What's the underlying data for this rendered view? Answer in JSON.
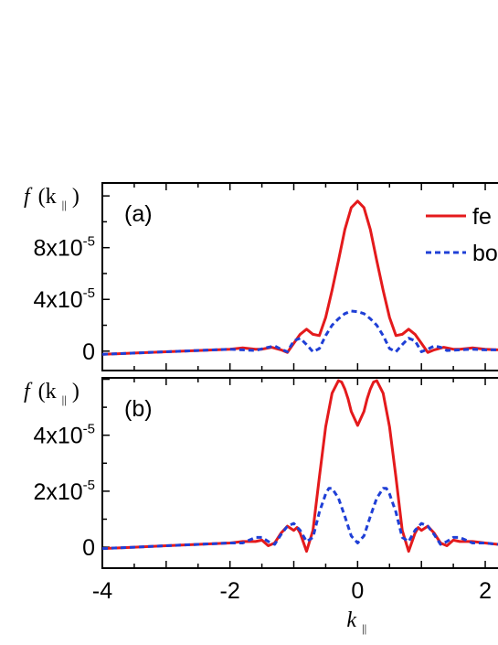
{
  "chart_data": [
    {
      "type": "line",
      "panel": "(a)",
      "ylabel_main": "f",
      "ylabel_arg": "(k",
      "ylabel_sub": "||",
      "ylabel_close": ")",
      "xlim": [
        -4,
        2.2
      ],
      "ylim": [
        -1.5e-05,
        0.00013
      ],
      "yticks": [
        {
          "value": 0,
          "label": "0"
        },
        {
          "value": 4e-05,
          "label": "4x10",
          "exp": "-5"
        },
        {
          "value": 8e-05,
          "label": "8x10",
          "exp": "-5"
        }
      ],
      "legend": {
        "position": "top-right"
      },
      "series": [
        {
          "name": "fe",
          "color": "#e41a1c",
          "dash": "solid",
          "x": [
            -4,
            -3.5,
            -3,
            -2.5,
            -2,
            -1.8,
            -1.6,
            -1.5,
            -1.35,
            -1.2,
            -1.1,
            -1.0,
            -0.9,
            -0.8,
            -0.7,
            -0.6,
            -0.5,
            -0.4,
            -0.3,
            -0.2,
            -0.1,
            0,
            0.1,
            0.2,
            0.3,
            0.4,
            0.5,
            0.6,
            0.7,
            0.8,
            0.9,
            1.0,
            1.1,
            1.2,
            1.35,
            1.5,
            1.6,
            1.8,
            2.0,
            2.2
          ],
          "y": [
            -2.5e-06,
            -1.5e-06,
            -5e-07,
            5e-07,
            1.5e-06,
            2.5e-06,
            1.5e-06,
            1.5e-06,
            3e-06,
            1e-06,
            -1e-06,
            6e-06,
            1.3e-05,
            1.7e-05,
            1.3e-05,
            1.2e-05,
            2.6e-05,
            4.7e-05,
            7e-05,
            9.4e-05,
            0.000111,
            0.000116,
            0.000111,
            9.4e-05,
            7e-05,
            4.7e-05,
            2.6e-05,
            1.2e-05,
            1.3e-05,
            1.7e-05,
            1.3e-05,
            6e-06,
            -1e-06,
            1e-06,
            3e-06,
            1.5e-06,
            1.5e-06,
            2.5e-06,
            1.5e-06,
            1e-06
          ]
        },
        {
          "name": "bo",
          "color": "#1f3fd6",
          "dash": "dashed",
          "x": [
            -4,
            -3.5,
            -3,
            -2.5,
            -2,
            -1.8,
            -1.6,
            -1.4,
            -1.3,
            -1.2,
            -1.1,
            -1.0,
            -0.9,
            -0.8,
            -0.7,
            -0.6,
            -0.5,
            -0.4,
            -0.3,
            -0.2,
            -0.1,
            0,
            0.1,
            0.2,
            0.3,
            0.4,
            0.5,
            0.6,
            0.7,
            0.8,
            0.9,
            1.0,
            1.1,
            1.2,
            1.3,
            1.4,
            1.6,
            1.8,
            2.0,
            2.2
          ],
          "y": [
            -2.5e-06,
            -1.5e-06,
            -5e-07,
            5e-07,
            1.5e-06,
            1e-06,
            5e-07,
            3e-06,
            4e-06,
            1.5e-06,
            -5e-07,
            8e-06,
            1e-05,
            5e-06,
            -5e-07,
            2e-06,
            1.2e-05,
            2e-05,
            2.5e-05,
            2.9e-05,
            3.1e-05,
            3.05e-05,
            2.9e-05,
            2.5e-05,
            2e-05,
            1.2e-05,
            2e-06,
            -5e-07,
            5e-06,
            1e-05,
            8e-06,
            -5e-07,
            1.5e-06,
            4e-06,
            3e-06,
            5e-07,
            1e-06,
            1.5e-06,
            1e-06,
            1e-06
          ]
        }
      ]
    },
    {
      "type": "line",
      "panel": "(b)",
      "ylabel_main": "f",
      "ylabel_arg": "(k",
      "ylabel_sub": "||",
      "ylabel_close": ")",
      "xlabel_main": "k",
      "xlabel_sub": "||",
      "xlim": [
        -4,
        2.2
      ],
      "ylim": [
        -7.5e-06,
        6.05e-05
      ],
      "xticks": [
        {
          "value": -4,
          "label": "-4"
        },
        {
          "value": -2,
          "label": "-2"
        },
        {
          "value": 0,
          "label": "0"
        },
        {
          "value": 2,
          "label": "2"
        }
      ],
      "yticks": [
        {
          "value": 0,
          "label": "0"
        },
        {
          "value": 2e-05,
          "label": "2x10",
          "exp": "-5"
        },
        {
          "value": 4e-05,
          "label": "4x10",
          "exp": "-5"
        }
      ],
      "series": [
        {
          "name": "fe",
          "color": "#e41a1c",
          "dash": "solid",
          "x": [
            -4,
            -3.5,
            -3,
            -2.5,
            -2,
            -1.8,
            -1.6,
            -1.5,
            -1.4,
            -1.3,
            -1.2,
            -1.1,
            -1.0,
            -0.95,
            -0.9,
            -0.8,
            -0.7,
            -0.6,
            -0.5,
            -0.4,
            -0.3,
            -0.25,
            -0.2,
            -0.15,
            -0.1,
            0,
            0.1,
            0.15,
            0.2,
            0.25,
            0.3,
            0.4,
            0.5,
            0.6,
            0.7,
            0.8,
            0.9,
            0.95,
            1.0,
            1.1,
            1.2,
            1.3,
            1.4,
            1.5,
            1.6,
            1.8,
            2.0,
            2.2
          ],
          "y": [
            -5e-07,
            0,
            5e-07,
            1e-06,
            1.5e-06,
            2e-06,
            2e-06,
            2.5e-06,
            5e-07,
            1.5e-06,
            5e-06,
            7.5e-06,
            6e-06,
            7e-06,
            5e-06,
            -1.5e-06,
            6e-06,
            2.5e-05,
            4.3e-05,
            5.5e-05,
            5.95e-05,
            5.9e-05,
            5.65e-05,
            5.3e-05,
            4.85e-05,
            4.35e-05,
            4.85e-05,
            5.3e-05,
            5.65e-05,
            5.9e-05,
            5.95e-05,
            5.5e-05,
            4.3e-05,
            2.5e-05,
            6e-06,
            -1.5e-06,
            5e-06,
            7e-06,
            6e-06,
            7.5e-06,
            5e-06,
            1.5e-06,
            5e-07,
            2.5e-06,
            2e-06,
            2e-06,
            1.5e-06,
            1e-06
          ]
        },
        {
          "name": "bo",
          "color": "#1f3fd6",
          "dash": "dashed",
          "x": [
            -4,
            -3.5,
            -3,
            -2.5,
            -2,
            -1.8,
            -1.6,
            -1.5,
            -1.4,
            -1.3,
            -1.2,
            -1.1,
            -1.0,
            -0.9,
            -0.8,
            -0.7,
            -0.6,
            -0.5,
            -0.45,
            -0.4,
            -0.3,
            -0.2,
            -0.1,
            0,
            0.1,
            0.2,
            0.3,
            0.4,
            0.45,
            0.5,
            0.6,
            0.7,
            0.8,
            0.9,
            1.0,
            1.1,
            1.2,
            1.3,
            1.4,
            1.5,
            1.6,
            1.8,
            2.0,
            2.2
          ],
          "y": [
            -5e-07,
            0,
            5e-07,
            1e-06,
            1.5e-06,
            1.5e-06,
            3.5e-06,
            3.5e-06,
            2e-06,
            1e-06,
            4.5e-06,
            7.5e-06,
            8.5e-06,
            6e-06,
            2e-06,
            3.5e-06,
            1.25e-05,
            1.9e-05,
            2.1e-05,
            2.1e-05,
            1.75e-05,
            1.1e-05,
            4e-06,
            1.5e-06,
            4e-06,
            1.1e-05,
            1.75e-05,
            2.1e-05,
            2.1e-05,
            1.9e-05,
            1.25e-05,
            3.5e-06,
            2e-06,
            6e-06,
            8.5e-06,
            7.5e-06,
            4.5e-06,
            1e-06,
            2e-06,
            3.5e-06,
            3.5e-06,
            1.5e-06,
            1.5e-06,
            1e-06
          ]
        }
      ]
    }
  ]
}
